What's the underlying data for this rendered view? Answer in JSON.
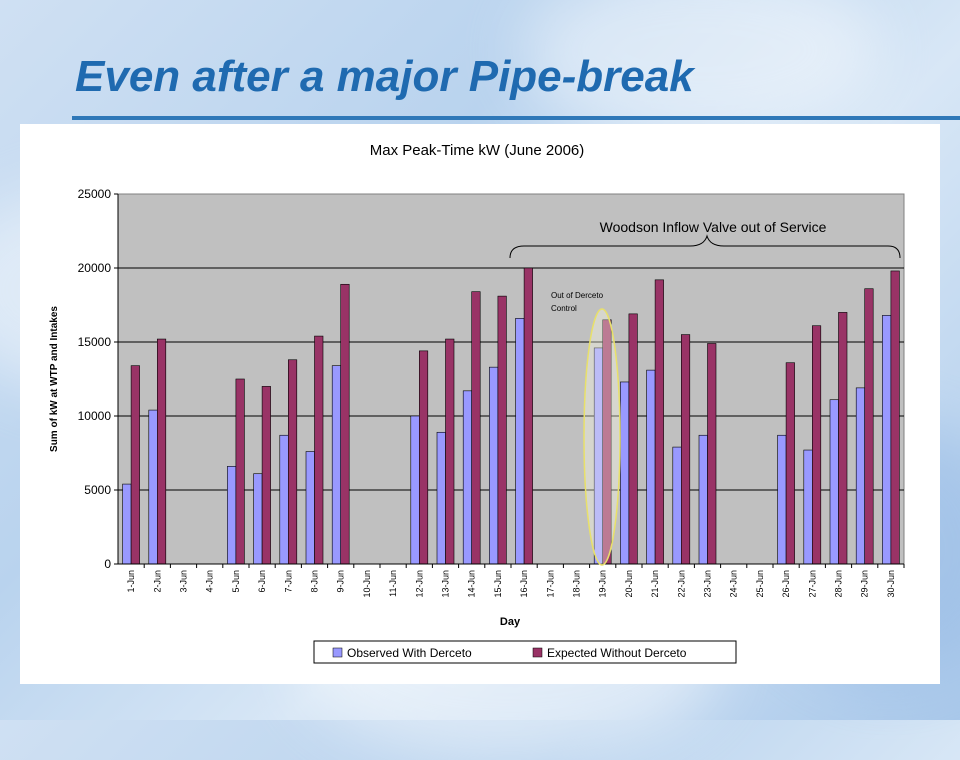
{
  "slide": {
    "title": "Even after a major Pipe-break"
  },
  "chart_data": {
    "type": "bar",
    "title": "Max Peak-Time kW (June 2006)",
    "xlabel": "Day",
    "ylabel": "Sum of kW at WTP and Intakes",
    "ylim": [
      0,
      25000
    ],
    "yticks": [
      0,
      5000,
      10000,
      15000,
      20000,
      25000
    ],
    "grid": true,
    "legend": "bottom",
    "categories": [
      "1-Jun",
      "2-Jun",
      "3-Jun",
      "4-Jun",
      "5-Jun",
      "6-Jun",
      "7-Jun",
      "8-Jun",
      "9-Jun",
      "10-Jun",
      "11-Jun",
      "12-Jun",
      "13-Jun",
      "14-Jun",
      "15-Jun",
      "16-Jun",
      "17-Jun",
      "18-Jun",
      "19-Jun",
      "20-Jun",
      "21-Jun",
      "22-Jun",
      "23-Jun",
      "24-Jun",
      "25-Jun",
      "26-Jun",
      "27-Jun",
      "28-Jun",
      "29-Jun",
      "30-Jun"
    ],
    "series": [
      {
        "name": "Observed With Derceto",
        "color": "#9999ff",
        "values": [
          5400,
          10400,
          null,
          null,
          6600,
          6100,
          8700,
          7600,
          13400,
          null,
          null,
          10000,
          8900,
          11700,
          13300,
          16600,
          null,
          null,
          14600,
          12300,
          13100,
          7900,
          8700,
          null,
          null,
          8700,
          7700,
          11100,
          11900,
          16800
        ]
      },
      {
        "name": "Expected Without Derceto",
        "color": "#993366",
        "values": [
          13400,
          15200,
          null,
          null,
          12500,
          12000,
          13800,
          15400,
          18900,
          null,
          null,
          14400,
          15200,
          18400,
          18100,
          20000,
          null,
          null,
          16500,
          16900,
          19200,
          15500,
          14900,
          null,
          null,
          13600,
          16100,
          17000,
          18600,
          19800
        ]
      }
    ],
    "annotations": [
      {
        "text": "Woodson Inflow Valve out of Service",
        "from": "16-Jun",
        "to": "30-Jun"
      },
      {
        "text": "Out of Derceto\nControl",
        "target": "19-Jun"
      }
    ]
  }
}
